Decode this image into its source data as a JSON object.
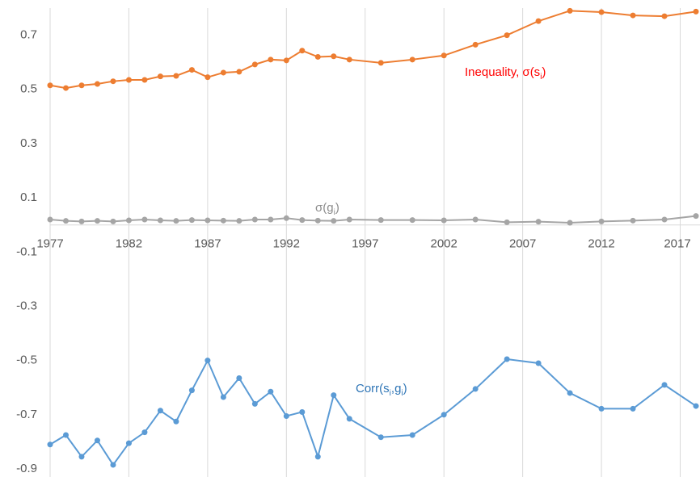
{
  "chart_data": {
    "type": "line",
    "x": [
      1977,
      1978,
      1979,
      1980,
      1981,
      1982,
      1983,
      1984,
      1985,
      1986,
      1987,
      1988,
      1989,
      1990,
      1991,
      1992,
      1993,
      1994,
      1995,
      1996,
      1998,
      2000,
      2002,
      2004,
      2006,
      2008,
      2010,
      2012,
      2014,
      2016,
      2018
    ],
    "series": [
      {
        "color": "#ed7d31",
        "label_color": "#ff0000",
        "label": [
          {
            "text": "Inequality, σ(s"
          },
          {
            "sub": "i"
          },
          {
            "text": ")"
          }
        ],
        "values": [
          0.515,
          0.505,
          0.515,
          0.52,
          0.53,
          0.535,
          0.535,
          0.548,
          0.55,
          0.572,
          0.545,
          0.562,
          0.565,
          0.592,
          0.61,
          0.607,
          0.643,
          0.62,
          0.622,
          0.61,
          0.598,
          0.61,
          0.625,
          0.665,
          0.7,
          0.752,
          0.79,
          0.785,
          0.773,
          0.77,
          0.787
        ]
      },
      {
        "color": "#a5a5a5",
        "label_color": "#8c8c8c",
        "label": [
          {
            "text": "σ(g"
          },
          {
            "sub": "i"
          },
          {
            "text": ")"
          }
        ],
        "values": [
          0.02,
          0.015,
          0.013,
          0.015,
          0.013,
          0.017,
          0.02,
          0.017,
          0.015,
          0.018,
          0.017,
          0.016,
          0.015,
          0.02,
          0.02,
          0.025,
          0.018,
          0.016,
          0.015,
          0.02,
          0.018,
          0.018,
          0.017,
          0.02,
          0.01,
          0.012,
          0.008,
          0.013,
          0.016,
          0.02,
          0.033
        ]
      },
      {
        "color": "#5b9bd5",
        "label_color": "#2e75b6",
        "label": [
          {
            "text": "Corr(s"
          },
          {
            "sub": "i"
          },
          {
            "text": ",g"
          },
          {
            "sub": "i"
          },
          {
            "text": ")"
          }
        ],
        "values": [
          -0.81,
          -0.775,
          -0.855,
          -0.795,
          -0.885,
          -0.805,
          -0.765,
          -0.685,
          -0.725,
          -0.61,
          -0.5,
          -0.635,
          -0.565,
          -0.66,
          -0.615,
          -0.705,
          -0.69,
          -0.855,
          -0.628,
          -0.715,
          -0.783,
          -0.775,
          -0.7,
          -0.605,
          -0.495,
          -0.51,
          -0.62,
          -0.678,
          -0.678,
          -0.59,
          -0.668
        ]
      }
    ],
    "xlim": [
      1977,
      2018
    ],
    "xticks": [
      1977,
      1982,
      1987,
      1992,
      1997,
      2002,
      2007,
      2012,
      2017
    ],
    "ylim": [
      -0.9,
      0.8
    ],
    "yticks": [
      0.7,
      0.5,
      0.3,
      0.1,
      -0.1,
      -0.3,
      -0.5,
      -0.7,
      -0.9
    ],
    "grid": true
  }
}
